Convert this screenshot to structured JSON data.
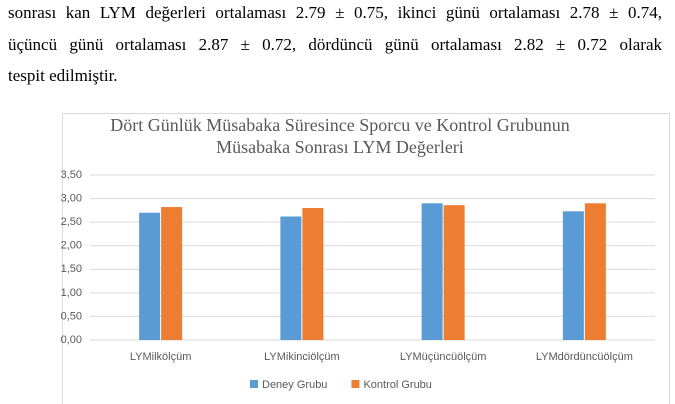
{
  "paragraph": {
    "lines": [
      "sonrası kan LYM değerleri ortalaması 2.79 ± 0.75, ikinci günü ortalaması 2.78 ± 0.74,",
      "üçüncü günü ortalaması 2.87 ± 0.72, dördüncü günü ortalaması 2.82 ± 0.72 olarak",
      "tespit edilmiştir."
    ]
  },
  "chart_data": {
    "type": "bar",
    "title": [
      "Dört Günlük Müsabaka Süresince Sporcu ve Kontrol Grubunun",
      "Müsabaka Sonrası LYM Değerleri"
    ],
    "categories": [
      "LYMilkölçüm",
      "LYMikinciölçüm",
      "LYMüçüncüölçüm",
      "LYMdördüncüölçüm"
    ],
    "series": [
      {
        "name": "Deney Grubu",
        "color": "#5b9bd5",
        "values": [
          2.7,
          2.62,
          2.9,
          2.73
        ]
      },
      {
        "name": "Kontrol Grubu",
        "color": "#ed7d31",
        "values": [
          2.82,
          2.8,
          2.86,
          2.9
        ]
      }
    ],
    "ylim": [
      0,
      3.5
    ],
    "yticks": [
      {
        "value": 0,
        "label": "0,00"
      },
      {
        "value": 0.5,
        "label": "0,50"
      },
      {
        "value": 1,
        "label": "1,00"
      },
      {
        "value": 1.5,
        "label": "1,50"
      },
      {
        "value": 2,
        "label": "2,00"
      },
      {
        "value": 2.5,
        "label": "2,50"
      },
      {
        "value": 3,
        "label": "3,00"
      },
      {
        "value": 3.5,
        "label": "3,50"
      }
    ],
    "grid": true,
    "legend": "bottom"
  }
}
